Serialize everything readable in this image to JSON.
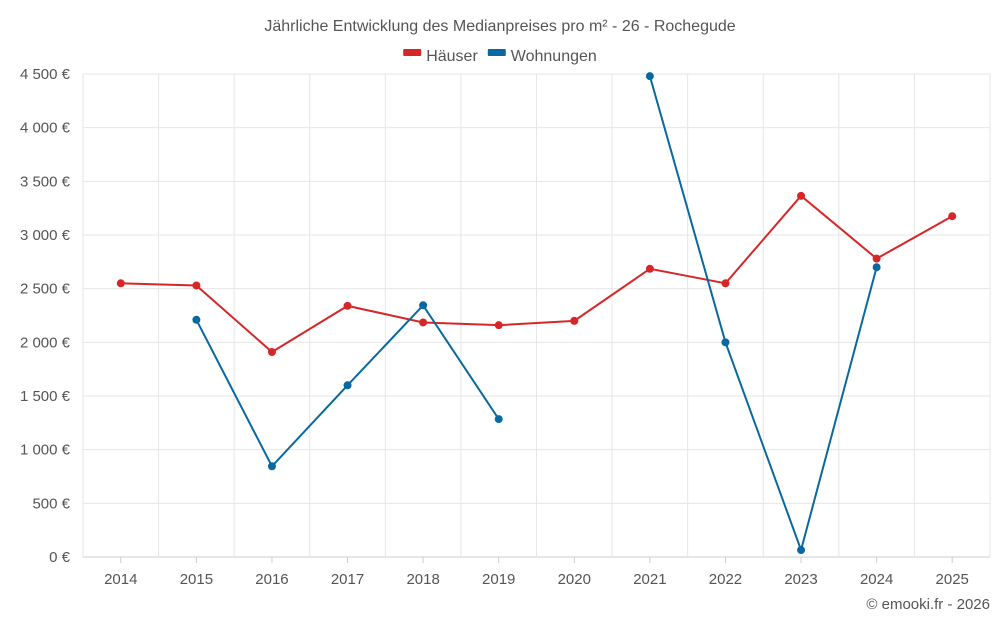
{
  "chart_data": {
    "type": "line",
    "title": "Jährliche Entwicklung des Medianpreises pro m² - 26 - Rochegude",
    "categories": [
      "2014",
      "2015",
      "2016",
      "2017",
      "2018",
      "2019",
      "2020",
      "2021",
      "2022",
      "2023",
      "2024",
      "2025"
    ],
    "y_tick_labels": [
      "0 €",
      "500 €",
      "1 000 €",
      "1 500 €",
      "2 000 €",
      "2 500 €",
      "3 000 €",
      "3 500 €",
      "4 000 €",
      "4 500 €"
    ],
    "y_ticks": [
      0,
      500,
      1000,
      1500,
      2000,
      2500,
      3000,
      3500,
      4000,
      4500
    ],
    "ylim": [
      0,
      4500
    ],
    "xlabel": "",
    "ylabel": "",
    "legend_position": "top-center",
    "series": [
      {
        "name": "Häuser",
        "color": "#d62728",
        "values": [
          2550,
          2530,
          1910,
          2340,
          2185,
          2160,
          2200,
          2685,
          2550,
          3365,
          2780,
          3175
        ]
      },
      {
        "name": "Wohnungen",
        "color": "#0868a0",
        "values": [
          null,
          2210,
          845,
          1600,
          2345,
          1285,
          null,
          4480,
          2000,
          65,
          2700,
          null
        ]
      }
    ],
    "credit": "© emooki.fr - 2026"
  }
}
